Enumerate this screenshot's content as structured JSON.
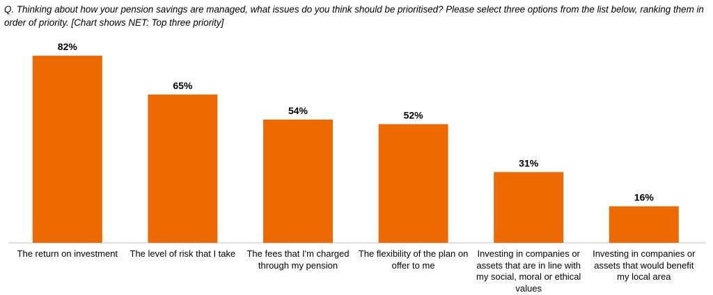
{
  "question": "Q. Thinking about how your pension savings are managed, what issues do you think should be prioritised? Please select three options from the list below, ranking them in order of priority. [Chart shows NET: Top three priority]",
  "chart_data": {
    "type": "bar",
    "categories": [
      "The return on investment",
      "The level of risk that I take",
      "The fees that I'm charged through my pension",
      "The flexibility of the plan on offer to me",
      "Investing in companies or assets that are in line with my social, moral or ethical values",
      "Investing in companies or assets that would benefit my local area"
    ],
    "values": [
      82,
      65,
      54,
      52,
      31,
      16
    ],
    "value_labels": [
      "82%",
      "65%",
      "54%",
      "52%",
      "31%",
      "16%"
    ],
    "ylim": [
      0,
      100
    ],
    "grid": false,
    "legend": "none",
    "bar_color": "#ED6A02"
  }
}
